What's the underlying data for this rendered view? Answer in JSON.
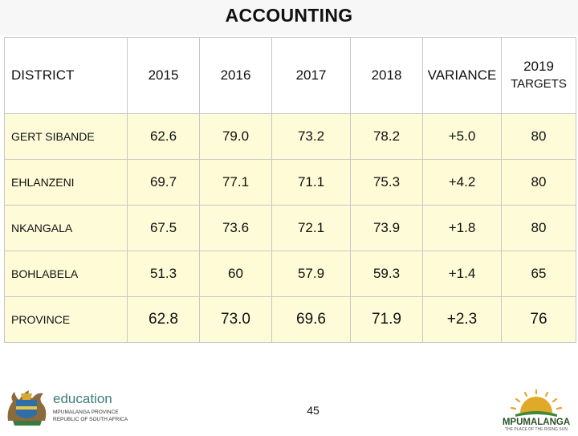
{
  "title": "ACCOUNTING",
  "table": {
    "headers": {
      "district": "DISTRICT",
      "years": [
        "2015",
        "2016",
        "2017",
        "2018"
      ],
      "variance": "VARIANCE",
      "targets_year": "2019",
      "targets_label": "TARGETS"
    },
    "rows": [
      {
        "district": "GERT SIBANDE",
        "values": [
          "62.6",
          "79.0",
          "73.2",
          "78.2"
        ],
        "variance": "+5.0",
        "target": "80"
      },
      {
        "district": "EHLANZENI",
        "values": [
          "69.7",
          "77.1",
          "71.1",
          "75.3"
        ],
        "variance": "+4.2",
        "target": "80"
      },
      {
        "district": "NKANGALA",
        "values": [
          "67.5",
          "73.6",
          "72.1",
          "73.9"
        ],
        "variance": "+1.8",
        "target": "80"
      },
      {
        "district": "BOHLABELA",
        "values": [
          "51.3",
          "60",
          "57.9",
          "59.3"
        ],
        "variance": "+1.4",
        "target": "65"
      },
      {
        "district": "PROVINCE",
        "values": [
          "62.8",
          "73.0",
          "69.6",
          "71.9"
        ],
        "variance": "+2.3",
        "target": "76"
      }
    ]
  },
  "footer": {
    "page_number": "45",
    "left_logo": {
      "word": "education",
      "line1": "MPUMALANGA PROVINCE",
      "line2": "REPUBLIC OF SOUTH AFRICA",
      "icon": "coat-of-arms-icon"
    },
    "right_logo": {
      "word": "MPUMALANGA",
      "tagline": "THE PLACE OF THE RISING SUN",
      "icon": "rising-sun-icon"
    }
  },
  "colors": {
    "row_fill": "#fdfbd8",
    "border": "#c8c8c8",
    "education_teal": "#3d7c7a",
    "sun_gold": "#e0a92a",
    "mp_green": "#2a5226"
  }
}
